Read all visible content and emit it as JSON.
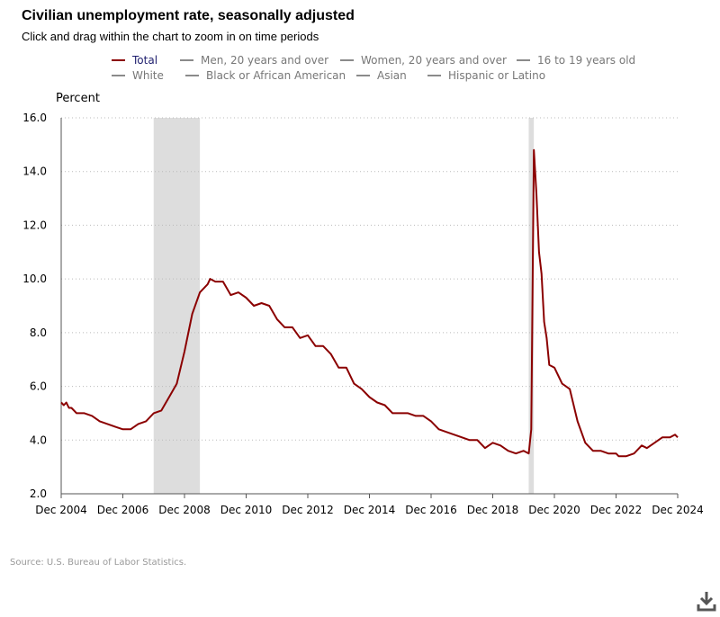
{
  "header": {
    "title": "Civilian unemployment rate, seasonally adjusted",
    "subtitle": "Click and drag within the chart to zoom in on time periods"
  },
  "legend": {
    "row1": [
      "Total",
      "Men, 20 years and over",
      "Women, 20 years and over",
      "16 to 19 years old"
    ],
    "row2": [
      "White",
      "Black or African American",
      "Asian",
      "Hispanic or Latino"
    ],
    "active": "Total"
  },
  "footer": {
    "source": "Source: U.S. Bureau of Labor Statistics."
  },
  "icons": {
    "download": "download-icon"
  },
  "colors": {
    "series": "#8b0000",
    "recession": "#dddddd",
    "inactive_legend": "#8a8a8a",
    "active_legend_text": "#1f1f6e"
  },
  "chart_data": {
    "type": "line",
    "ylabel": "Percent",
    "ylim": [
      2.0,
      16.0
    ],
    "yticks": [
      "2.0",
      "4.0",
      "6.0",
      "8.0",
      "10.0",
      "12.0",
      "14.0",
      "16.0"
    ],
    "xticks": [
      "Dec 2004",
      "Dec 2006",
      "Dec 2008",
      "Dec 2010",
      "Dec 2012",
      "Dec 2014",
      "Dec 2016",
      "Dec 2018",
      "Dec 2020",
      "Dec 2022",
      "Dec 2024"
    ],
    "xlim": [
      "Dec 2004",
      "Dec 2024"
    ],
    "grid": "horizontal dotted",
    "recessions": [
      {
        "start": "Dec 2007",
        "end": "Jun 2009"
      },
      {
        "start": "Feb 2020",
        "end": "Apr 2020"
      }
    ],
    "series": [
      {
        "name": "Total",
        "x": [
          "Dec 2004",
          "Jan 2005",
          "Feb 2005",
          "Mar 2005",
          "Apr 2005",
          "Jun 2005",
          "Sep 2005",
          "Dec 2005",
          "Mar 2006",
          "Jun 2006",
          "Sep 2006",
          "Dec 2006",
          "Mar 2007",
          "Jun 2007",
          "Sep 2007",
          "Dec 2007",
          "Mar 2008",
          "Jun 2008",
          "Sep 2008",
          "Dec 2008",
          "Mar 2009",
          "Jun 2009",
          "Sep 2009",
          "Oct 2009",
          "Dec 2009",
          "Mar 2010",
          "Jun 2010",
          "Sep 2010",
          "Dec 2010",
          "Mar 2011",
          "Jun 2011",
          "Sep 2011",
          "Dec 2011",
          "Mar 2012",
          "Jun 2012",
          "Sep 2012",
          "Dec 2012",
          "Mar 2013",
          "Jun 2013",
          "Sep 2013",
          "Dec 2013",
          "Mar 2014",
          "Jun 2014",
          "Sep 2014",
          "Dec 2014",
          "Mar 2015",
          "Jun 2015",
          "Sep 2015",
          "Dec 2015",
          "Mar 2016",
          "Jun 2016",
          "Sep 2016",
          "Dec 2016",
          "Mar 2017",
          "Jun 2017",
          "Sep 2017",
          "Dec 2017",
          "Mar 2018",
          "Jun 2018",
          "Sep 2018",
          "Dec 2018",
          "Mar 2019",
          "Jun 2019",
          "Sep 2019",
          "Dec 2019",
          "Feb 2020",
          "Mar 2020",
          "Apr 2020",
          "May 2020",
          "Jun 2020",
          "Jul 2020",
          "Aug 2020",
          "Sep 2020",
          "Oct 2020",
          "Dec 2020",
          "Mar 2021",
          "Jun 2021",
          "Sep 2021",
          "Dec 2021",
          "Mar 2022",
          "Jun 2022",
          "Sep 2022",
          "Dec 2022",
          "Jan 2023",
          "Apr 2023",
          "Jul 2023",
          "Oct 2023",
          "Dec 2023",
          "Mar 2024",
          "Jun 2024",
          "Sep 2024",
          "Nov 2024",
          "Dec 2024"
        ],
        "values": [
          5.4,
          5.3,
          5.4,
          5.2,
          5.2,
          5.0,
          5.0,
          4.9,
          4.7,
          4.6,
          4.5,
          4.4,
          4.4,
          4.6,
          4.7,
          5.0,
          5.1,
          5.6,
          6.1,
          7.3,
          8.7,
          9.5,
          9.8,
          10.0,
          9.9,
          9.9,
          9.4,
          9.5,
          9.3,
          9.0,
          9.1,
          9.0,
          8.5,
          8.2,
          8.2,
          7.8,
          7.9,
          7.5,
          7.5,
          7.2,
          6.7,
          6.7,
          6.1,
          5.9,
          5.6,
          5.4,
          5.3,
          5.0,
          5.0,
          5.0,
          4.9,
          4.9,
          4.7,
          4.4,
          4.3,
          4.2,
          4.1,
          4.0,
          4.0,
          3.7,
          3.9,
          3.8,
          3.6,
          3.5,
          3.6,
          3.5,
          4.4,
          14.8,
          13.2,
          11.0,
          10.2,
          8.4,
          7.8,
          6.8,
          6.7,
          6.1,
          5.9,
          4.7,
          3.9,
          3.6,
          3.6,
          3.5,
          3.5,
          3.4,
          3.4,
          3.5,
          3.8,
          3.7,
          3.9,
          4.1,
          4.1,
          4.2,
          4.1
        ]
      }
    ]
  }
}
